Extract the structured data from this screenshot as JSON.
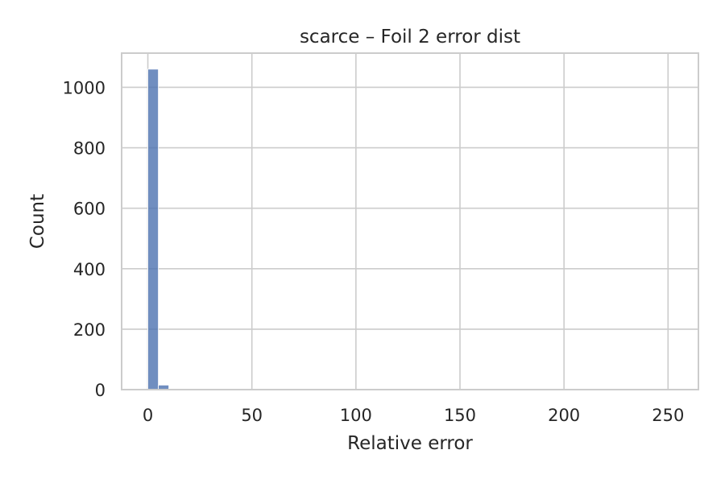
{
  "chart_data": {
    "type": "bar",
    "title": "scarce – Foil 2 error dist",
    "xlabel": "Relative error",
    "ylabel": "Count",
    "xlim": [
      -12.6,
      264.6
    ],
    "ylim": [
      0,
      1113
    ],
    "xticks": [
      0,
      50,
      100,
      150,
      200,
      250
    ],
    "yticks": [
      0,
      200,
      400,
      600,
      800,
      1000
    ],
    "grid": true,
    "bin_width": 5.04,
    "bins": [
      {
        "x0": 0.0,
        "count": 1060
      },
      {
        "x0": 5.04,
        "count": 15
      },
      {
        "x0": 10.08,
        "count": 3
      },
      {
        "x0": 15.12,
        "count": 1
      },
      {
        "x0": 20.16,
        "count": 1
      },
      {
        "x0": 25.2,
        "count": 1
      },
      {
        "x0": 30.24,
        "count": 0
      },
      {
        "x0": 40.32,
        "count": 1
      },
      {
        "x0": 60.48,
        "count": 1
      },
      {
        "x0": 246.96,
        "count": 1
      }
    ],
    "color": "#4c72b0"
  }
}
